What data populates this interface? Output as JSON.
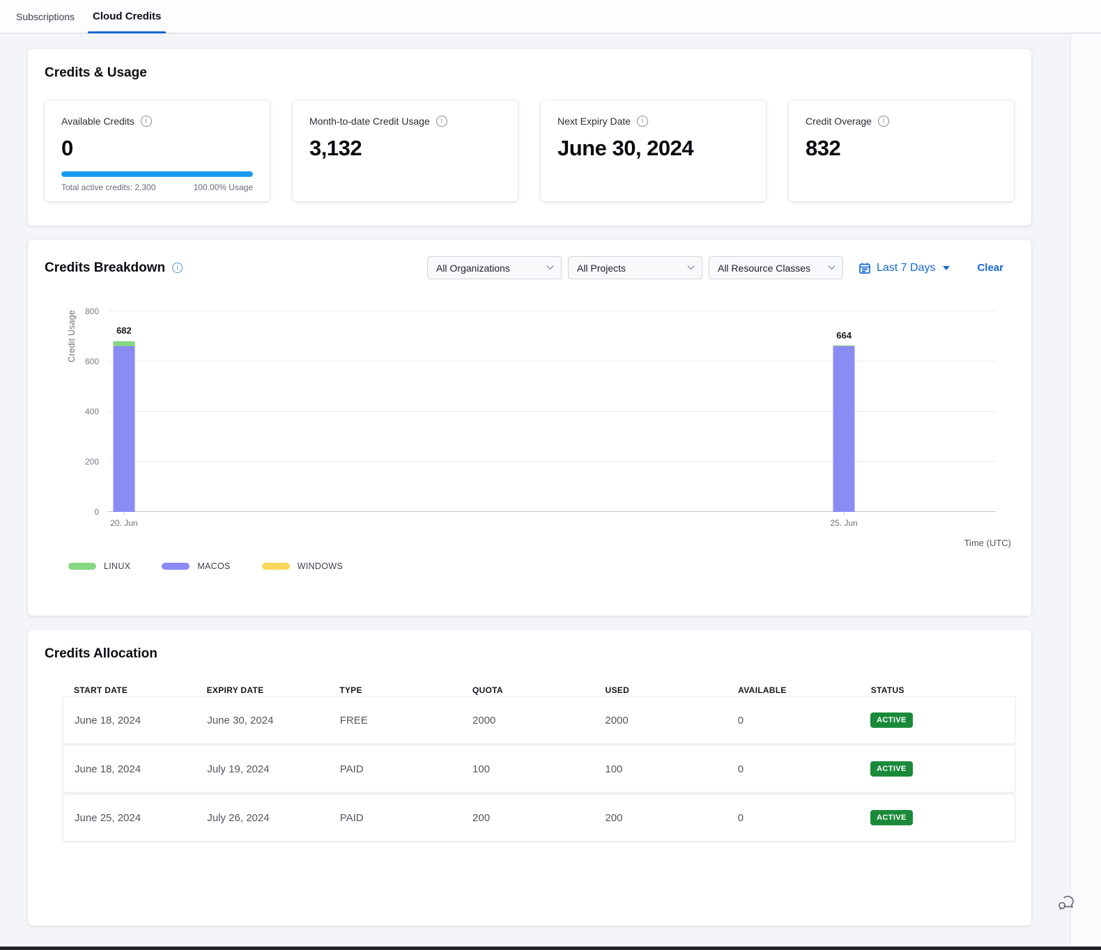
{
  "tabs": {
    "items": [
      {
        "label": "Subscriptions",
        "active": false
      },
      {
        "label": "Cloud Credits",
        "active": true
      }
    ]
  },
  "credits_usage": {
    "title": "Credits & Usage",
    "cards": [
      {
        "label": "Available Credits",
        "value": "0",
        "progress_pct": 100,
        "footer_left": "Total active credits: 2,300",
        "footer_right": "100.00% Usage"
      },
      {
        "label": "Month-to-date Credit Usage",
        "value": "3,132"
      },
      {
        "label": "Next Expiry Date",
        "value": "June 30, 2024"
      },
      {
        "label": "Credit Overage",
        "value": "832"
      }
    ]
  },
  "breakdown": {
    "title": "Credits Breakdown",
    "filters": {
      "organizations": "All Organizations",
      "projects": "All Projects",
      "resource_classes": "All Resource Classes",
      "date_range": "Last 7 Days",
      "clear_label": "Clear"
    }
  },
  "chart_data": {
    "type": "bar",
    "stacked": true,
    "x_categories": [
      "20. Jun",
      "25. Jun"
    ],
    "bar_positions_pct": [
      1.8,
      82.9
    ],
    "series": [
      {
        "name": "MACOS",
        "color": "#8a8bf4",
        "values": [
          660,
          662
        ]
      },
      {
        "name": "LINUX",
        "color": "#86d682",
        "values": [
          22,
          2
        ]
      },
      {
        "name": "WINDOWS",
        "color": "#fad65c",
        "values": [
          0,
          0
        ]
      }
    ],
    "totals": [
      682,
      664
    ],
    "legend_order": [
      "LINUX",
      "MACOS",
      "WINDOWS"
    ],
    "ylabel": "Credit Usage",
    "xlabel": "Time (UTC)",
    "ylim": [
      0,
      800
    ],
    "yticks": [
      0,
      200,
      400,
      600,
      800
    ],
    "grid": true,
    "legend_position": "bottom-left"
  },
  "allocation": {
    "title": "Credits Allocation",
    "columns": [
      "START DATE",
      "EXPIRY DATE",
      "TYPE",
      "QUOTA",
      "USED",
      "AVAILABLE",
      "STATUS"
    ],
    "rows": [
      [
        "June 18, 2024",
        "June 30, 2024",
        "FREE",
        "2000",
        "2000",
        "0",
        "ACTIVE"
      ],
      [
        "June 18, 2024",
        "July 19, 2024",
        "PAID",
        "100",
        "100",
        "0",
        "ACTIVE"
      ],
      [
        "June 25, 2024",
        "July 26, 2024",
        "PAID",
        "200",
        "200",
        "0",
        "ACTIVE"
      ]
    ],
    "status_color": "#1a8a3a"
  },
  "icons": {
    "info_glyph": "i"
  },
  "colors": {
    "accent_blue": "#1567d3",
    "progress_blue": "#1a9af0"
  }
}
